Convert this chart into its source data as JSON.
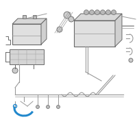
{
  "bg_color": "#ffffff",
  "line_color": "#aaaaaa",
  "highlight_color": "#2288cc",
  "dark_line": "#666666",
  "med_line": "#999999",
  "batt_fill": "#e0e0e0",
  "batt_edge": "#666666"
}
